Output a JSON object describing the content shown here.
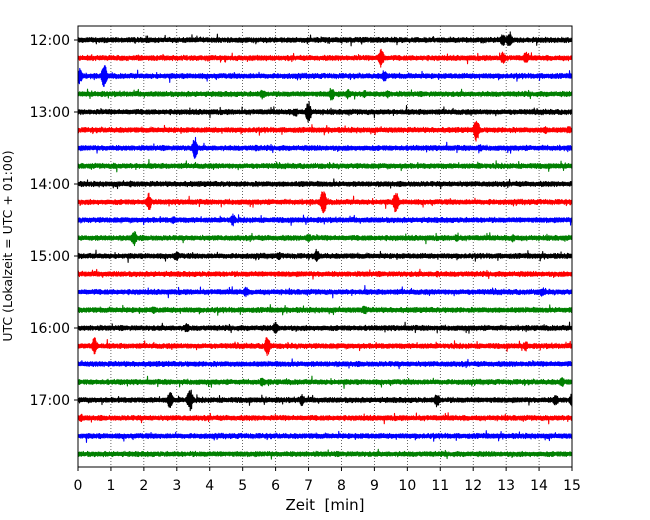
{
  "chart_data": {
    "type": "line",
    "title": "",
    "xlabel": "Zeit  [min]",
    "ylabel": "UTC (Lokalzeit = UTC + 01:00)",
    "xlim": [
      0,
      15
    ],
    "x_ticks": [
      "0",
      "1",
      "2",
      "3",
      "4",
      "5",
      "6",
      "7",
      "8",
      "9",
      "10",
      "11",
      "12",
      "13",
      "14",
      "15"
    ],
    "x_grid": "dotted vertical at each minute",
    "y_ticks": [
      "12:00",
      "13:00",
      "14:00",
      "15:00",
      "16:00",
      "17:00"
    ],
    "rows_per_hour": 4,
    "row_interval_min": 15,
    "colors": [
      "#000000",
      "#ff0000",
      "#0000ff",
      "#008000"
    ],
    "rows": [
      {
        "start": "12:00",
        "events": [
          [
            13.1,
            9
          ],
          [
            12.9,
            6
          ]
        ]
      },
      {
        "start": "12:15",
        "events": [
          [
            9.2,
            10
          ],
          [
            12.9,
            6
          ],
          [
            13.6,
            6
          ],
          [
            0.3,
            3
          ]
        ]
      },
      {
        "start": "12:30",
        "events": [
          [
            0.8,
            12
          ],
          [
            0.05,
            8
          ],
          [
            9.3,
            6
          ]
        ]
      },
      {
        "start": "12:45",
        "events": [
          [
            7.7,
            7
          ],
          [
            8.2,
            5
          ],
          [
            5.6,
            5
          ],
          [
            8.7,
            4
          ],
          [
            9.4,
            4
          ]
        ]
      },
      {
        "start": "13:00",
        "events": [
          [
            7.0,
            11
          ],
          [
            6.6,
            5
          ]
        ]
      },
      {
        "start": "13:15",
        "events": [
          [
            12.1,
            12
          ],
          [
            14.2,
            4
          ],
          [
            14.9,
            4
          ]
        ]
      },
      {
        "start": "13:30",
        "events": [
          [
            3.55,
            11
          ],
          [
            5.4,
            3
          ],
          [
            12.2,
            4
          ]
        ]
      },
      {
        "start": "13:45",
        "events": [
          [
            1.1,
            3
          ],
          [
            12.2,
            3
          ]
        ]
      },
      {
        "start": "14:00",
        "events": [
          [
            6.8,
            3
          ],
          [
            1.6,
            3
          ]
        ]
      },
      {
        "start": "14:15",
        "events": [
          [
            7.45,
            14
          ],
          [
            9.65,
            11
          ],
          [
            2.15,
            9
          ],
          [
            12.5,
            3
          ]
        ]
      },
      {
        "start": "14:30",
        "events": [
          [
            4.7,
            6
          ],
          [
            2.9,
            4
          ]
        ]
      },
      {
        "start": "14:45",
        "events": [
          [
            1.7,
            8
          ],
          [
            7.0,
            5
          ],
          [
            11.5,
            4
          ],
          [
            13.2,
            4
          ]
        ]
      },
      {
        "start": "15:00",
        "events": [
          [
            7.25,
            7
          ],
          [
            3.0,
            5
          ],
          [
            6.1,
            4
          ]
        ]
      },
      {
        "start": "15:15",
        "events": [
          [
            10.9,
            3
          ]
        ]
      },
      {
        "start": "15:30",
        "events": [
          [
            5.1,
            5
          ],
          [
            14.1,
            5
          ]
        ]
      },
      {
        "start": "15:45",
        "events": [
          [
            8.7,
            5
          ],
          [
            2.3,
            4
          ]
        ]
      },
      {
        "start": "16:00",
        "events": [
          [
            6.0,
            6
          ],
          [
            3.3,
            5
          ]
        ]
      },
      {
        "start": "16:15",
        "events": [
          [
            0.5,
            9
          ],
          [
            5.75,
            10
          ],
          [
            13.6,
            5
          ]
        ]
      },
      {
        "start": "16:30",
        "events": [
          [
            0.2,
            2
          ]
        ]
      },
      {
        "start": "16:45",
        "events": [
          [
            5.6,
            5
          ],
          [
            14.7,
            5
          ],
          [
            1.3,
            3
          ]
        ]
      },
      {
        "start": "17:00",
        "events": [
          [
            3.4,
            12
          ],
          [
            2.8,
            9
          ],
          [
            10.9,
            7
          ],
          [
            6.8,
            6
          ],
          [
            14.5,
            6
          ],
          [
            15.0,
            7
          ]
        ]
      },
      {
        "start": "17:15",
        "events": [
          [
            0.1,
            4
          ]
        ]
      },
      {
        "start": "17:30",
        "events": []
      },
      {
        "start": "17:45",
        "events": []
      }
    ]
  }
}
